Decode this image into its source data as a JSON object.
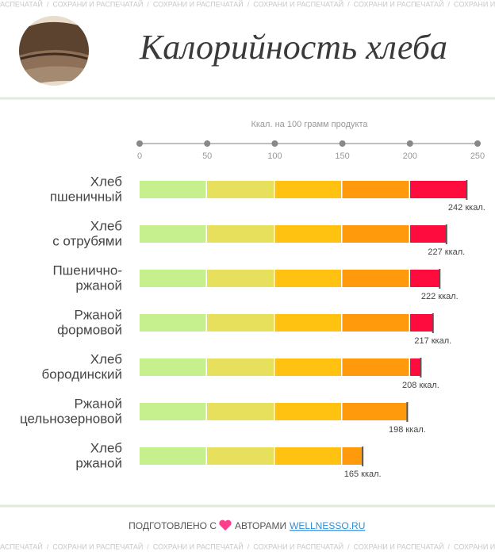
{
  "watermark": "СОХРАНИ И РАСПЕЧАТАЙ",
  "watermark_separator": "/",
  "chart_data": {
    "type": "bar",
    "orientation": "horizontal",
    "title": "Калорийность хлеба",
    "x_label": "Ккал. на 100 грамм продукта",
    "categories": [
      [
        "Хлеб",
        "пшеничный"
      ],
      [
        "Хлеб",
        "с отрубями"
      ],
      [
        "Пшенично-",
        "ржаной"
      ],
      [
        "Ржаной",
        "формовой"
      ],
      [
        "Хлеб",
        "бородинский"
      ],
      [
        "Ржаной",
        "цельнозерновой"
      ],
      [
        "Хлеб",
        "ржаной"
      ]
    ],
    "values": [
      242,
      227,
      222,
      217,
      208,
      198,
      165
    ],
    "value_labels": [
      "242 ккал.",
      "227 ккал.",
      "222 ккал.",
      "217 ккал.",
      "208 ккал.",
      "198 ккал.",
      "165 ккал."
    ],
    "xlim": [
      0,
      250
    ],
    "xticks": [
      0,
      50,
      100,
      150,
      200,
      250
    ],
    "band_colors": [
      "#c6f08e",
      "#e6e05c",
      "#ffc210",
      "#ff9a0c",
      "#ff0c3e"
    ]
  },
  "footer": {
    "prefix": "ПОДГОТОВЛЕНО С",
    "suffix": "АВТОРАМИ",
    "link": "WELLNESSO.RU"
  }
}
